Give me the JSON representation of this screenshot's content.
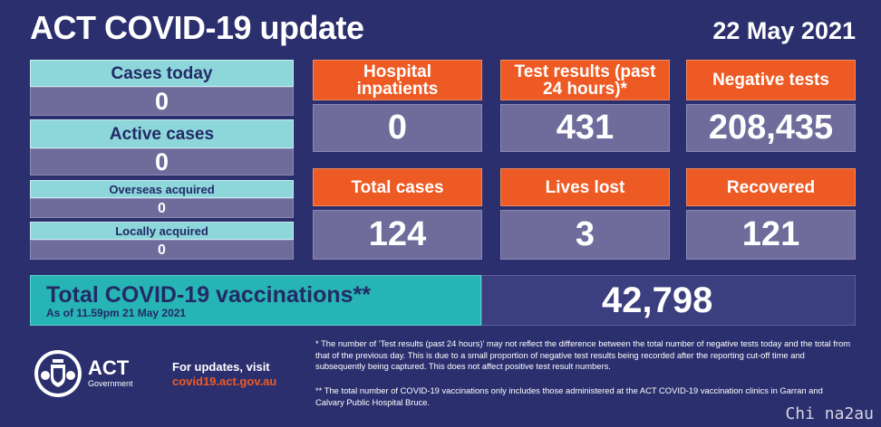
{
  "header": {
    "title": "ACT COVID-19 update",
    "date": "22 May 2021"
  },
  "left_panel": {
    "cases_today": {
      "label": "Cases today",
      "value": "0"
    },
    "active_cases": {
      "label": "Active cases",
      "value": "0"
    },
    "overseas_acquired": {
      "label": "Overseas acquired",
      "value": "0"
    },
    "locally_acquired": {
      "label": "Locally acquired",
      "value": "0"
    }
  },
  "stats": {
    "hospital_inpatients": {
      "label": "Hospital inpatients",
      "value": "0"
    },
    "test_results": {
      "label": "Test results (past 24 hours)*",
      "value": "431"
    },
    "negative_tests": {
      "label": "Negative tests",
      "value": "208,435"
    },
    "total_cases": {
      "label": "Total cases",
      "value": "124"
    },
    "lives_lost": {
      "label": "Lives lost",
      "value": "3"
    },
    "recovered": {
      "label": "Recovered",
      "value": "121"
    }
  },
  "vaccinations": {
    "title": "Total COVID-19 vaccinations**",
    "subtitle": "As of 11.59pm 21 May 2021",
    "value": "42,798"
  },
  "footer": {
    "logo_text": "ACT",
    "logo_subtext": "Government",
    "updates_label": "For updates, visit",
    "updates_url": "covid19.act.gov.au",
    "note1": "* The number of 'Test results (past 24 hours)' may not reflect the difference between the total number of negative tests today and the total from that of the previous day. This is due to a small proportion of negative test results being recorded after the reporting cut-off time and subsequently being captured. This does not affect positive test result numbers.",
    "note2": "** The total number of COVID-19 vaccinations only includes those administered at the ACT COVID-19 vaccination clinics in Garran and Calvary Public Hospital Bruce."
  },
  "watermark": "Chi na2au",
  "colors": {
    "background": "#2b2f6e",
    "teal": "#8dd6da",
    "orange": "#ee5a24",
    "value_box": "#6f6c9c",
    "vaccination_teal": "#27b4b4"
  }
}
